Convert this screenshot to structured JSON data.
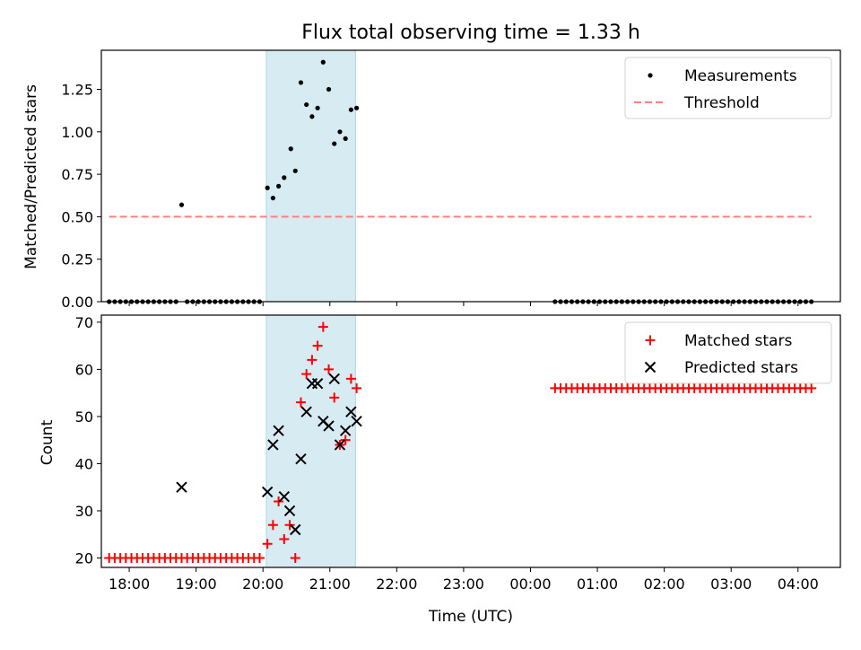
{
  "chart_data": [
    {
      "type": "scatter",
      "title": "Flux total observing time = 1.33 h",
      "xlabel": "",
      "ylabel": "Matched/Predicted stars",
      "xlim": [
        "17:35",
        "04:38"
      ],
      "ylim": [
        0,
        1.48
      ],
      "grid": false,
      "legend_placement": "top-right",
      "yticks": [
        "0.00",
        "0.25",
        "0.50",
        "0.75",
        "1.00",
        "1.25"
      ],
      "highlight_span": [
        "20:03",
        "21:23"
      ],
      "series": [
        {
          "name": "Measurements",
          "marker": "dot",
          "color": "#000000",
          "points": [
            [
              "17:42",
              0
            ],
            [
              "17:47",
              0
            ],
            [
              "17:52",
              0
            ],
            [
              "17:57",
              0
            ],
            [
              "18:02",
              0
            ],
            [
              "18:07",
              0
            ],
            [
              "18:12",
              0
            ],
            [
              "18:17",
              0
            ],
            [
              "18:22",
              0
            ],
            [
              "18:27",
              0
            ],
            [
              "18:32",
              0
            ],
            [
              "18:37",
              0
            ],
            [
              "18:42",
              0
            ],
            [
              "18:47",
              0.57
            ],
            [
              "18:52",
              0
            ],
            [
              "18:57",
              0
            ],
            [
              "19:02",
              0
            ],
            [
              "19:07",
              0
            ],
            [
              "19:12",
              0
            ],
            [
              "19:17",
              0
            ],
            [
              "19:22",
              0
            ],
            [
              "19:27",
              0
            ],
            [
              "19:32",
              0
            ],
            [
              "19:37",
              0
            ],
            [
              "19:42",
              0
            ],
            [
              "19:47",
              0
            ],
            [
              "19:52",
              0
            ],
            [
              "19:57",
              0
            ],
            [
              "20:04",
              0.67
            ],
            [
              "20:09",
              0.61
            ],
            [
              "20:14",
              0.68
            ],
            [
              "20:19",
              0.73
            ],
            [
              "20:25",
              0.9
            ],
            [
              "20:29",
              0.77
            ],
            [
              "20:34",
              1.29
            ],
            [
              "20:39",
              1.16
            ],
            [
              "20:44",
              1.09
            ],
            [
              "20:49",
              1.14
            ],
            [
              "20:54",
              1.41
            ],
            [
              "20:59",
              1.25
            ],
            [
              "21:04",
              0.93
            ],
            [
              "21:09",
              1.0
            ],
            [
              "21:14",
              0.96
            ],
            [
              "21:19",
              1.13
            ],
            [
              "21:24",
              1.14
            ],
            [
              "00:22",
              0
            ],
            [
              "00:27",
              0
            ],
            [
              "00:32",
              0
            ],
            [
              "00:37",
              0
            ],
            [
              "00:42",
              0
            ],
            [
              "00:47",
              0
            ],
            [
              "00:52",
              0
            ],
            [
              "00:57",
              0
            ],
            [
              "01:02",
              0
            ],
            [
              "01:07",
              0
            ],
            [
              "01:12",
              0
            ],
            [
              "01:17",
              0
            ],
            [
              "01:22",
              0
            ],
            [
              "01:27",
              0
            ],
            [
              "01:32",
              0
            ],
            [
              "01:37",
              0
            ],
            [
              "01:42",
              0
            ],
            [
              "01:47",
              0
            ],
            [
              "01:52",
              0
            ],
            [
              "01:57",
              0
            ],
            [
              "02:02",
              0
            ],
            [
              "02:07",
              0
            ],
            [
              "02:12",
              0
            ],
            [
              "02:17",
              0
            ],
            [
              "02:22",
              0
            ],
            [
              "02:27",
              0
            ],
            [
              "02:32",
              0
            ],
            [
              "02:37",
              0
            ],
            [
              "02:42",
              0
            ],
            [
              "02:47",
              0
            ],
            [
              "02:52",
              0
            ],
            [
              "02:57",
              0
            ],
            [
              "03:02",
              0
            ],
            [
              "03:07",
              0
            ],
            [
              "03:12",
              0
            ],
            [
              "03:17",
              0
            ],
            [
              "03:22",
              0
            ],
            [
              "03:27",
              0
            ],
            [
              "03:32",
              0
            ],
            [
              "03:37",
              0
            ],
            [
              "03:42",
              0
            ],
            [
              "03:47",
              0
            ],
            [
              "03:52",
              0
            ],
            [
              "03:57",
              0
            ],
            [
              "04:02",
              0
            ],
            [
              "04:07",
              0
            ],
            [
              "04:12",
              0
            ]
          ]
        },
        {
          "name": "Threshold",
          "line": "dashed",
          "color": "#ff7f7f",
          "points": [
            [
              "17:42",
              0.5
            ],
            [
              "04:12",
              0.5
            ]
          ]
        }
      ]
    },
    {
      "type": "scatter",
      "title": "",
      "xlabel": "Time (UTC)",
      "ylabel": "Count",
      "xlim": [
        "17:35",
        "04:38"
      ],
      "ylim": [
        18,
        71.5
      ],
      "grid": false,
      "legend_placement": "top-right",
      "xticks": [
        "18:00",
        "19:00",
        "20:00",
        "21:00",
        "22:00",
        "23:00",
        "00:00",
        "01:00",
        "02:00",
        "03:00",
        "04:00"
      ],
      "yticks": [
        "20",
        "30",
        "40",
        "50",
        "60",
        "70"
      ],
      "highlight_span": [
        "20:03",
        "21:23"
      ],
      "series": [
        {
          "name": "Matched stars",
          "marker": "plus",
          "color": "#ff0000",
          "points": [
            [
              "17:42",
              20
            ],
            [
              "17:47",
              20
            ],
            [
              "17:52",
              20
            ],
            [
              "17:57",
              20
            ],
            [
              "18:02",
              20
            ],
            [
              "18:07",
              20
            ],
            [
              "18:12",
              20
            ],
            [
              "18:17",
              20
            ],
            [
              "18:22",
              20
            ],
            [
              "18:27",
              20
            ],
            [
              "18:32",
              20
            ],
            [
              "18:37",
              20
            ],
            [
              "18:42",
              20
            ],
            [
              "18:47",
              20
            ],
            [
              "18:52",
              20
            ],
            [
              "18:57",
              20
            ],
            [
              "19:02",
              20
            ],
            [
              "19:07",
              20
            ],
            [
              "19:12",
              20
            ],
            [
              "19:17",
              20
            ],
            [
              "19:22",
              20
            ],
            [
              "19:27",
              20
            ],
            [
              "19:32",
              20
            ],
            [
              "19:37",
              20
            ],
            [
              "19:42",
              20
            ],
            [
              "19:47",
              20
            ],
            [
              "19:52",
              20
            ],
            [
              "19:57",
              20
            ],
            [
              "20:04",
              23
            ],
            [
              "20:09",
              27
            ],
            [
              "20:14",
              32
            ],
            [
              "20:19",
              24
            ],
            [
              "20:24",
              27
            ],
            [
              "20:29",
              20
            ],
            [
              "20:34",
              53
            ],
            [
              "20:39",
              59
            ],
            [
              "20:44",
              62
            ],
            [
              "20:49",
              65
            ],
            [
              "20:54",
              69
            ],
            [
              "20:59",
              60
            ],
            [
              "21:04",
              54
            ],
            [
              "21:09",
              44
            ],
            [
              "21:14",
              45
            ],
            [
              "21:19",
              58
            ],
            [
              "21:24",
              56
            ],
            [
              "00:22",
              56
            ],
            [
              "00:27",
              56
            ],
            [
              "00:32",
              56
            ],
            [
              "00:37",
              56
            ],
            [
              "00:42",
              56
            ],
            [
              "00:47",
              56
            ],
            [
              "00:52",
              56
            ],
            [
              "00:57",
              56
            ],
            [
              "01:02",
              56
            ],
            [
              "01:07",
              56
            ],
            [
              "01:12",
              56
            ],
            [
              "01:17",
              56
            ],
            [
              "01:22",
              56
            ],
            [
              "01:27",
              56
            ],
            [
              "01:32",
              56
            ],
            [
              "01:37",
              56
            ],
            [
              "01:42",
              56
            ],
            [
              "01:47",
              56
            ],
            [
              "01:52",
              56
            ],
            [
              "01:57",
              56
            ],
            [
              "02:02",
              56
            ],
            [
              "02:07",
              56
            ],
            [
              "02:12",
              56
            ],
            [
              "02:17",
              56
            ],
            [
              "02:22",
              56
            ],
            [
              "02:27",
              56
            ],
            [
              "02:32",
              56
            ],
            [
              "02:37",
              56
            ],
            [
              "02:42",
              56
            ],
            [
              "02:47",
              56
            ],
            [
              "02:52",
              56
            ],
            [
              "02:57",
              56
            ],
            [
              "03:02",
              56
            ],
            [
              "03:07",
              56
            ],
            [
              "03:12",
              56
            ],
            [
              "03:17",
              56
            ],
            [
              "03:22",
              56
            ],
            [
              "03:27",
              56
            ],
            [
              "03:32",
              56
            ],
            [
              "03:37",
              56
            ],
            [
              "03:42",
              56
            ],
            [
              "03:47",
              56
            ],
            [
              "03:52",
              56
            ],
            [
              "03:57",
              56
            ],
            [
              "04:02",
              56
            ],
            [
              "04:07",
              56
            ],
            [
              "04:12",
              56
            ]
          ]
        },
        {
          "name": "Predicted stars",
          "marker": "x",
          "color": "#000000",
          "points": [
            [
              "18:47",
              35
            ],
            [
              "20:04",
              34
            ],
            [
              "20:09",
              44
            ],
            [
              "20:14",
              47
            ],
            [
              "20:19",
              33
            ],
            [
              "20:24",
              30
            ],
            [
              "20:29",
              26
            ],
            [
              "20:34",
              41
            ],
            [
              "20:39",
              51
            ],
            [
              "20:44",
              57
            ],
            [
              "20:49",
              57
            ],
            [
              "20:54",
              49
            ],
            [
              "20:59",
              48
            ],
            [
              "21:04",
              58
            ],
            [
              "21:09",
              44
            ],
            [
              "21:14",
              47
            ],
            [
              "21:19",
              51
            ],
            [
              "21:24",
              49
            ]
          ]
        }
      ]
    }
  ]
}
